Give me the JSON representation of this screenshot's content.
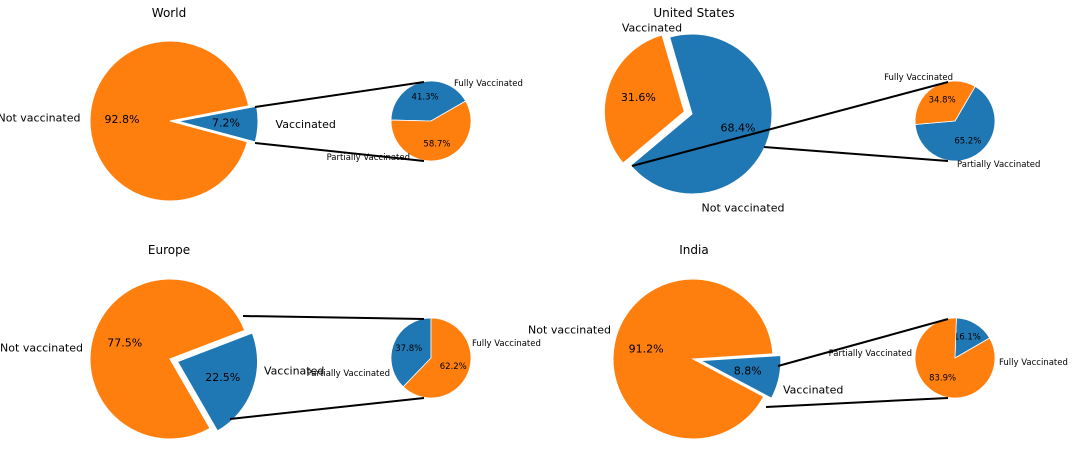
{
  "colors": {
    "blue": "#1f77b4",
    "orange": "#ff7f0e",
    "connector": "#000000"
  },
  "chart_data": [
    {
      "type": "pie",
      "title": "World",
      "main": {
        "slices": [
          {
            "label": "Vaccinated",
            "pct_label": "7.2%",
            "value": 7.2,
            "color": "blue",
            "explode": true
          },
          {
            "label": "Not vaccinated",
            "pct_label": "92.8%",
            "value": 92.8,
            "color": "orange",
            "explode": false
          }
        ]
      },
      "breakdown": {
        "slices": [
          {
            "label": "Fully Vaccinated",
            "pct_label": "41.3%",
            "value": 41.3,
            "color": "blue"
          },
          {
            "label": "Partially Vaccinated",
            "pct_label": "58.7%",
            "value": 58.7,
            "color": "orange"
          }
        ]
      }
    },
    {
      "type": "pie",
      "title": "United States",
      "main": {
        "slices": [
          {
            "label": "Vaccinated",
            "pct_label": "68.4%",
            "value": 68.4,
            "color": "blue",
            "explode": false
          },
          {
            "label": "Not vaccinated",
            "pct_label": "31.6%",
            "value": 31.6,
            "color": "orange",
            "explode": true
          }
        ]
      },
      "breakdown": {
        "slices": [
          {
            "label": "Fully Vaccinated",
            "pct_label": "65.2%",
            "value": 65.2,
            "color": "blue"
          },
          {
            "label": "Partially Vaccinated",
            "pct_label": "34.8%",
            "value": 34.8,
            "color": "orange"
          }
        ]
      }
    },
    {
      "type": "pie",
      "title": "Europe",
      "main": {
        "slices": [
          {
            "label": "Vaccinated",
            "pct_label": "22.5%",
            "value": 22.5,
            "color": "blue",
            "explode": true
          },
          {
            "label": "Not vaccinated",
            "pct_label": "77.5%",
            "value": 77.5,
            "color": "orange",
            "explode": false
          }
        ]
      },
      "breakdown": {
        "slices": [
          {
            "label": "Fully Vaccinated",
            "pct_label": "37.8%",
            "value": 37.8,
            "color": "blue"
          },
          {
            "label": "Partially Vaccinated",
            "pct_label": "62.2%",
            "value": 62.2,
            "color": "orange"
          }
        ]
      }
    },
    {
      "type": "pie",
      "title": "India",
      "main": {
        "slices": [
          {
            "label": "Vaccinated",
            "pct_label": "8.8%",
            "value": 8.8,
            "color": "blue",
            "explode": true
          },
          {
            "label": "Not vaccinated",
            "pct_label": "91.2%",
            "value": 91.2,
            "color": "orange",
            "explode": false
          }
        ]
      },
      "breakdown": {
        "slices": [
          {
            "label": "Fully Vaccinated",
            "pct_label": "16.1%",
            "value": 16.1,
            "color": "blue"
          },
          {
            "label": "Partially Vaccinated",
            "pct_label": "83.9%",
            "value": 83.9,
            "color": "orange"
          }
        ]
      }
    }
  ]
}
